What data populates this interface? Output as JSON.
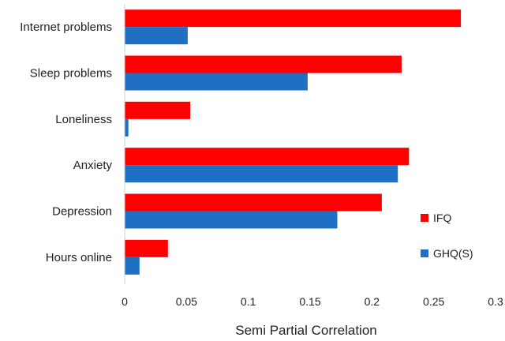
{
  "chart_data": {
    "type": "bar",
    "orientation": "horizontal",
    "categories": [
      "Internet problems",
      "Sleep problems",
      "Loneliness",
      "Anxiety",
      "Depression",
      "Hours online"
    ],
    "series": [
      {
        "name": "IFQ",
        "color": "#ff0000",
        "values": [
          0.272,
          0.224,
          0.053,
          0.23,
          0.208,
          0.035
        ]
      },
      {
        "name": "GHQ(S)",
        "color": "#1f6fc5",
        "values": [
          0.051,
          0.148,
          0.003,
          0.221,
          0.172,
          0.012
        ]
      }
    ],
    "title": "",
    "xlabel": "Semi Partial Correlation",
    "ylabel": "",
    "xlim": [
      0,
      0.3
    ],
    "xticks": [
      "0",
      "0.05",
      "0.1",
      "0.15",
      "0.2",
      "0.25",
      "0.3"
    ],
    "grid": false,
    "legend_position": "right"
  }
}
